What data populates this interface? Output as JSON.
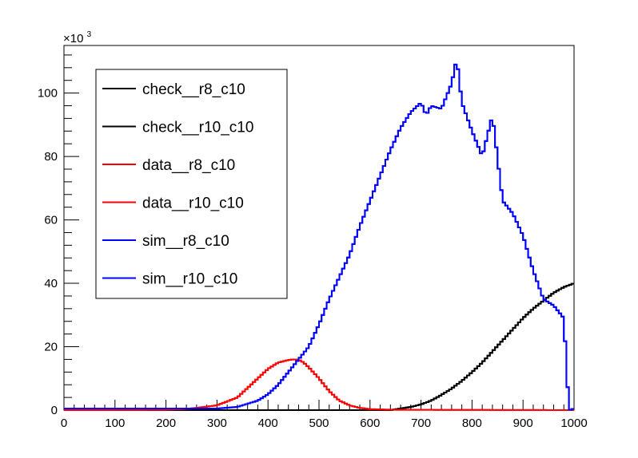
{
  "chart_data": {
    "type": "histogram",
    "multiplier_label": "×10",
    "multiplier_exponent": "3",
    "xlim": [
      0,
      1000
    ],
    "ylim": [
      0,
      115
    ],
    "x_ticks": [
      0,
      100,
      200,
      300,
      400,
      500,
      600,
      700,
      800,
      900,
      1000
    ],
    "y_ticks": [
      0,
      20,
      40,
      60,
      80,
      100
    ],
    "bin_width": 5,
    "grid": false,
    "legend_position": "top-left",
    "series": [
      {
        "name": "check__r8_c10",
        "color": "#000000",
        "x": [
          0,
          640,
          660,
          680,
          700,
          720,
          740,
          760,
          780,
          800,
          820,
          840,
          860,
          880,
          900,
          920,
          940,
          960,
          980,
          1000
        ],
        "y": [
          0,
          0,
          0.5,
          1,
          1.8,
          3,
          4.8,
          6.8,
          9.2,
          12,
          15,
          18.5,
          22,
          25.5,
          29,
          32,
          34.5,
          37,
          38.8,
          40
        ]
      },
      {
        "name": "check__r10_c10",
        "color": "#000000",
        "x": [
          0,
          640,
          660,
          680,
          700,
          720,
          740,
          760,
          780,
          800,
          820,
          840,
          860,
          880,
          900,
          920,
          940,
          960,
          980,
          1000
        ],
        "y": [
          0,
          0,
          0.5,
          1,
          1.8,
          3,
          4.8,
          6.8,
          9.2,
          12,
          15,
          18.5,
          22,
          25.5,
          29,
          32,
          34.5,
          37,
          38.8,
          40
        ]
      },
      {
        "name": "data__r8_c10",
        "color": "#ff0000",
        "x": [
          0,
          200,
          250,
          300,
          340,
          360,
          380,
          400,
          420,
          440,
          450,
          460,
          470,
          480,
          500,
          520,
          540,
          560,
          580,
          600,
          650,
          1000
        ],
        "y": [
          0,
          0.1,
          0.5,
          1.5,
          4,
          7,
          10,
          13,
          15,
          15.8,
          16,
          15.9,
          15,
          13.5,
          10,
          6,
          3,
          1.5,
          0.7,
          0.3,
          0.1,
          0
        ]
      },
      {
        "name": "data__r10_c10",
        "color": "#ff0000",
        "x": [
          0,
          200,
          250,
          300,
          340,
          360,
          380,
          400,
          420,
          440,
          450,
          460,
          470,
          480,
          500,
          520,
          540,
          560,
          580,
          600,
          650,
          1000
        ],
        "y": [
          0,
          0.1,
          0.5,
          1.5,
          4,
          7,
          10,
          13,
          15,
          15.8,
          16,
          15.9,
          15,
          13.5,
          10,
          6,
          3,
          1.5,
          0.7,
          0.3,
          0.1,
          0
        ]
      },
      {
        "name": "sim__r8_c10",
        "color": "#0000ff",
        "x": [
          0,
          200,
          300,
          340,
          360,
          380,
          400,
          420,
          440,
          460,
          480,
          500,
          520,
          540,
          560,
          580,
          600,
          620,
          640,
          660,
          680,
          700,
          710,
          720,
          740,
          760,
          770,
          780,
          800,
          820,
          840,
          860,
          880,
          900,
          920,
          940,
          960,
          980,
          990,
          1000
        ],
        "y": [
          0.5,
          0.5,
          0.5,
          1,
          2,
          3,
          5,
          8,
          12,
          16,
          20,
          27,
          35,
          42,
          49,
          58,
          66,
          74,
          82,
          89,
          94,
          97,
          93,
          96,
          95,
          103,
          111,
          97,
          88,
          80,
          93,
          66,
          62,
          55,
          44,
          35,
          33,
          29,
          0,
          0.5
        ]
      },
      {
        "name": "sim__r10_c10",
        "color": "#0000ff",
        "x": [
          0,
          200,
          300,
          340,
          360,
          380,
          400,
          420,
          440,
          460,
          480,
          500,
          520,
          540,
          560,
          580,
          600,
          620,
          640,
          660,
          680,
          700,
          710,
          720,
          740,
          760,
          770,
          780,
          800,
          820,
          840,
          860,
          880,
          900,
          920,
          940,
          960,
          980,
          990,
          1000
        ],
        "y": [
          0.5,
          0.5,
          0.5,
          1,
          2,
          3,
          5,
          8,
          12,
          16,
          20,
          27,
          35,
          42,
          49,
          58,
          66,
          74,
          82,
          89,
          94,
          97,
          93,
          96,
          95,
          103,
          111,
          97,
          88,
          80,
          93,
          66,
          62,
          55,
          44,
          35,
          33,
          29,
          0,
          0.5
        ]
      }
    ]
  }
}
